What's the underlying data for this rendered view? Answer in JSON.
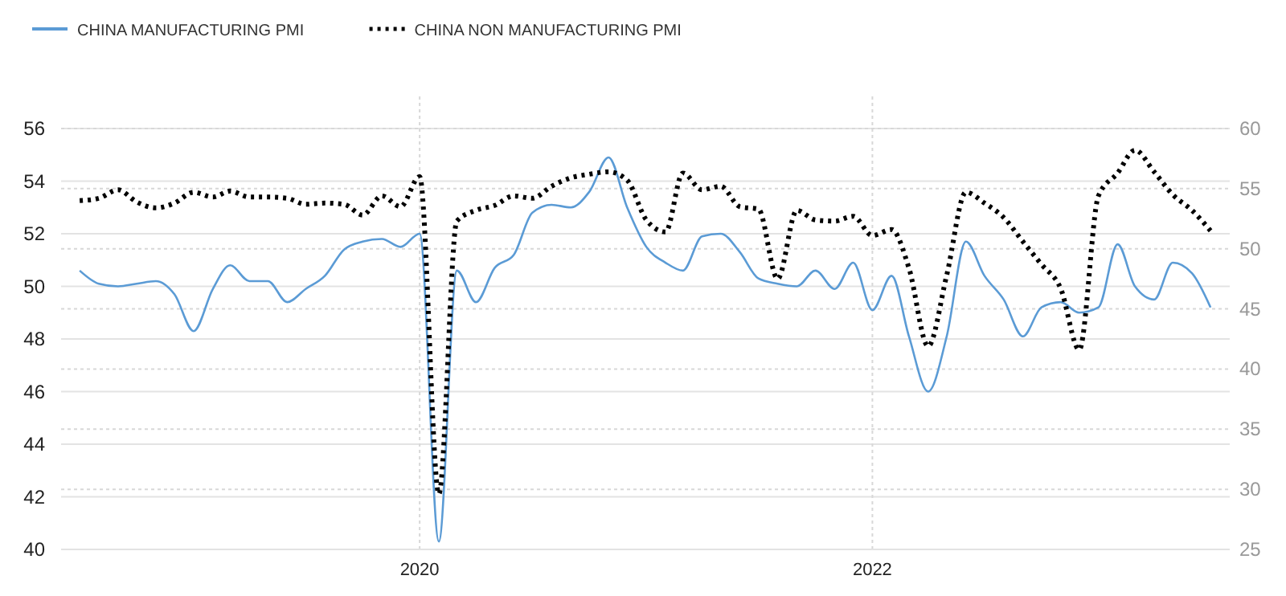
{
  "chart_data": {
    "type": "line",
    "x": [
      "2018-07",
      "2018-08",
      "2018-09",
      "2018-10",
      "2018-11",
      "2018-12",
      "2019-01",
      "2019-02",
      "2019-03",
      "2019-04",
      "2019-05",
      "2019-06",
      "2019-07",
      "2019-08",
      "2019-09",
      "2019-10",
      "2019-11",
      "2019-12",
      "2020-01",
      "2020-02",
      "2020-03",
      "2020-04",
      "2020-05",
      "2020-06",
      "2020-07",
      "2020-08",
      "2020-09",
      "2020-10",
      "2020-11",
      "2020-12",
      "2021-01",
      "2021-02",
      "2021-03",
      "2021-04",
      "2021-05",
      "2021-06",
      "2021-07",
      "2021-08",
      "2021-09",
      "2021-10",
      "2021-11",
      "2021-12",
      "2022-01",
      "2022-02",
      "2022-03",
      "2022-04",
      "2022-05",
      "2022-06",
      "2022-07",
      "2022-08",
      "2022-09",
      "2022-10",
      "2022-11",
      "2022-12",
      "2023-01",
      "2023-02",
      "2023-03",
      "2023-04",
      "2023-05",
      "2023-06",
      "2023-07"
    ],
    "series": [
      {
        "name": "CHINA MANUFACTURING PMI",
        "color": "#5b9bd5",
        "line_style": "solid",
        "values": [
          50.6,
          50.1,
          50.0,
          50.1,
          50.2,
          49.7,
          48.3,
          49.9,
          50.8,
          50.2,
          50.2,
          49.4,
          49.9,
          50.4,
          51.4,
          51.7,
          51.8,
          51.5,
          52.0,
          40.3,
          50.6,
          49.4,
          50.7,
          51.2,
          52.8,
          53.1,
          53.0,
          53.6,
          54.9,
          53.0,
          51.5,
          50.9,
          50.6,
          51.9,
          52.0,
          51.3,
          50.3,
          50.1,
          50.0,
          50.6,
          49.9,
          50.9,
          49.1,
          50.4,
          48.1,
          46.0,
          48.1,
          51.7,
          50.4,
          49.5,
          48.1,
          49.2,
          49.4,
          49.0,
          49.2,
          51.6,
          50.0,
          49.5,
          50.9,
          50.5,
          49.2
        ]
      },
      {
        "name": "CHINA NON MANUFACTURING PMI",
        "color": "#000000",
        "line_style": "dotted",
        "axis": "y2",
        "values": [
          54.0,
          54.2,
          54.9,
          53.9,
          53.4,
          53.8,
          54.7,
          54.3,
          54.8,
          54.3,
          54.3,
          54.2,
          53.7,
          53.8,
          53.7,
          52.8,
          54.4,
          53.5,
          56.0,
          29.6,
          52.3,
          53.2,
          53.6,
          54.4,
          54.2,
          55.2,
          55.9,
          56.2,
          56.4,
          55.7,
          52.4,
          51.4,
          56.3,
          54.9,
          55.2,
          53.5,
          53.3,
          47.5,
          53.2,
          52.4,
          52.3,
          52.7,
          51.1,
          51.6,
          48.4,
          41.9,
          47.8,
          54.7,
          53.8,
          52.6,
          50.6,
          48.7,
          46.7,
          41.6,
          54.4,
          56.3,
          58.2,
          56.4,
          54.5,
          53.2,
          51.5
        ]
      }
    ],
    "xlim": [
      "2018-06",
      "2023-08"
    ],
    "xticks": [
      {
        "value": "2020-01",
        "label": "2020"
      },
      {
        "value": "2022-01",
        "label": "2022"
      }
    ],
    "ylim": [
      40,
      56
    ],
    "yticks": [
      40,
      42,
      44,
      46,
      48,
      50,
      52,
      54,
      56
    ],
    "y2lim": [
      25,
      60
    ],
    "y2ticks": [
      25,
      30,
      35,
      40,
      45,
      50,
      55,
      60
    ],
    "grid": true,
    "legend": "top left"
  }
}
